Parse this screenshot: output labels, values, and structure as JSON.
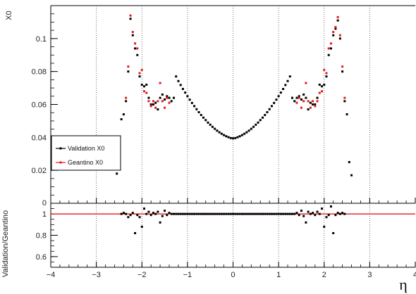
{
  "chart_data": [
    {
      "type": "scatter",
      "panel": "main",
      "ylabel": "X0",
      "xlim": [
        -4,
        4
      ],
      "ylim": [
        0,
        0.12
      ],
      "x_ticks": [
        -4,
        -3,
        -2,
        -1,
        0,
        1,
        2,
        3,
        4
      ],
      "y_ticks": [
        0.02,
        0.04,
        0.06,
        0.08,
        0.1
      ],
      "y_tick_labels": [
        "0.02",
        "0.04",
        "0.06",
        "0.08",
        "0.1"
      ],
      "grid": "vertical-dotted",
      "legend_position": "left",
      "series": [
        {
          "name": "Validation X0",
          "color": "#000000",
          "points": [
            [
              -2.55,
              0.018
            ],
            [
              -2.45,
              0.051
            ],
            [
              -2.4,
              0.054
            ],
            [
              -2.35,
              0.062
            ],
            [
              -2.3,
              0.08
            ],
            [
              -2.25,
              0.112
            ],
            [
              -2.2,
              0.102
            ],
            [
              -2.15,
              0.094
            ],
            [
              -2.1,
              0.09
            ],
            [
              -2.05,
              0.077
            ],
            [
              -2.0,
              0.072
            ],
            [
              -1.95,
              0.071
            ],
            [
              -1.9,
              0.072
            ],
            [
              -1.85,
              0.064
            ],
            [
              -1.8,
              0.06
            ],
            [
              -1.75,
              0.06
            ],
            [
              -1.7,
              0.061
            ],
            [
              -1.65,
              0.057
            ],
            [
              -1.6,
              0.064
            ],
            [
              -1.55,
              0.066
            ],
            [
              -1.5,
              0.063
            ],
            [
              -1.45,
              0.065
            ],
            [
              -1.4,
              0.064
            ],
            [
              -1.35,
              0.062
            ],
            [
              -1.3,
              0.064
            ],
            [
              -1.25,
              0.077
            ],
            [
              -1.2,
              0.0742
            ],
            [
              -1.15,
              0.0718
            ],
            [
              -1.1,
              0.0694
            ],
            [
              -1.05,
              0.0672
            ],
            [
              -1.0,
              0.065
            ],
            [
              -0.95,
              0.0629
            ],
            [
              -0.9,
              0.0609
            ],
            [
              -0.85,
              0.059
            ],
            [
              -0.8,
              0.0571
            ],
            [
              -0.75,
              0.0553
            ],
            [
              -0.7,
              0.0536
            ],
            [
              -0.65,
              0.052
            ],
            [
              -0.6,
              0.0505
            ],
            [
              -0.55,
              0.049
            ],
            [
              -0.5,
              0.0477
            ],
            [
              -0.45,
              0.0464
            ],
            [
              -0.4,
              0.0452
            ],
            [
              -0.35,
              0.0441
            ],
            [
              -0.3,
              0.0431
            ],
            [
              -0.25,
              0.0422
            ],
            [
              -0.2,
              0.0414
            ],
            [
              -0.15,
              0.0407
            ],
            [
              -0.1,
              0.0401
            ],
            [
              -0.05,
              0.0396
            ],
            [
              0.0,
              0.0394
            ],
            [
              0.05,
              0.0396
            ],
            [
              0.1,
              0.0401
            ],
            [
              0.15,
              0.0407
            ],
            [
              0.2,
              0.0414
            ],
            [
              0.25,
              0.0422
            ],
            [
              0.3,
              0.0431
            ],
            [
              0.35,
              0.0441
            ],
            [
              0.4,
              0.0452
            ],
            [
              0.45,
              0.0464
            ],
            [
              0.5,
              0.0477
            ],
            [
              0.55,
              0.049
            ],
            [
              0.6,
              0.0505
            ],
            [
              0.65,
              0.052
            ],
            [
              0.7,
              0.0536
            ],
            [
              0.75,
              0.0553
            ],
            [
              0.8,
              0.0571
            ],
            [
              0.85,
              0.059
            ],
            [
              0.9,
              0.0609
            ],
            [
              0.95,
              0.0629
            ],
            [
              1.0,
              0.065
            ],
            [
              1.05,
              0.0672
            ],
            [
              1.1,
              0.0694
            ],
            [
              1.15,
              0.0718
            ],
            [
              1.2,
              0.0742
            ],
            [
              1.25,
              0.077
            ],
            [
              1.3,
              0.064
            ],
            [
              1.35,
              0.062
            ],
            [
              1.4,
              0.064
            ],
            [
              1.45,
              0.065
            ],
            [
              1.5,
              0.063
            ],
            [
              1.55,
              0.066
            ],
            [
              1.6,
              0.064
            ],
            [
              1.65,
              0.057
            ],
            [
              1.7,
              0.061
            ],
            [
              1.75,
              0.06
            ],
            [
              1.8,
              0.06
            ],
            [
              1.85,
              0.064
            ],
            [
              1.9,
              0.072
            ],
            [
              1.95,
              0.071
            ],
            [
              2.0,
              0.072
            ],
            [
              2.05,
              0.077
            ],
            [
              2.1,
              0.09
            ],
            [
              2.15,
              0.094
            ],
            [
              2.2,
              0.102
            ],
            [
              2.25,
              0.106
            ],
            [
              2.3,
              0.111
            ],
            [
              2.35,
              0.1
            ],
            [
              2.4,
              0.08
            ],
            [
              2.45,
              0.062
            ],
            [
              2.5,
              0.054
            ],
            [
              2.55,
              0.025
            ],
            [
              2.6,
              0.017
            ]
          ]
        },
        {
          "name": "Geantino X0",
          "color": "#e41a1c",
          "points": [
            [
              -2.35,
              0.064
            ],
            [
              -2.3,
              0.083
            ],
            [
              -2.25,
              0.114
            ],
            [
              -2.2,
              0.104
            ],
            [
              -2.15,
              0.097
            ],
            [
              -2.1,
              0.094
            ],
            [
              -2.05,
              0.079
            ],
            [
              -2.0,
              0.081
            ],
            [
              -1.95,
              0.068
            ],
            [
              -1.9,
              0.067
            ],
            [
              -1.85,
              0.062
            ],
            [
              -1.8,
              0.059
            ],
            [
              -1.75,
              0.062
            ],
            [
              -1.7,
              0.058
            ],
            [
              -1.65,
              0.062
            ],
            [
              -1.6,
              0.073
            ],
            [
              -1.55,
              0.062
            ],
            [
              -1.5,
              0.058
            ],
            [
              -1.45,
              0.064
            ],
            [
              -1.4,
              0.061
            ],
            [
              1.4,
              0.061
            ],
            [
              1.45,
              0.064
            ],
            [
              1.5,
              0.058
            ],
            [
              1.55,
              0.062
            ],
            [
              1.6,
              0.073
            ],
            [
              1.65,
              0.062
            ],
            [
              1.7,
              0.058
            ],
            [
              1.75,
              0.062
            ],
            [
              1.8,
              0.059
            ],
            [
              1.85,
              0.062
            ],
            [
              1.9,
              0.067
            ],
            [
              1.95,
              0.068
            ],
            [
              2.0,
              0.081
            ],
            [
              2.05,
              0.079
            ],
            [
              2.1,
              0.094
            ],
            [
              2.15,
              0.097
            ],
            [
              2.2,
              0.104
            ],
            [
              2.25,
              0.107
            ],
            [
              2.3,
              0.113
            ],
            [
              2.35,
              0.102
            ],
            [
              2.4,
              0.083
            ],
            [
              2.45,
              0.064
            ]
          ]
        }
      ]
    },
    {
      "type": "scatter",
      "panel": "ratio",
      "ylabel": "Validation/Geantino",
      "xlabel": "η",
      "xlim": [
        -4,
        4
      ],
      "ylim": [
        0.5,
        1.1
      ],
      "x_ticks": [
        -4,
        -3,
        -2,
        -1,
        0,
        1,
        2,
        3,
        4
      ],
      "x_tick_labels": [
        "−4",
        "−3",
        "−2",
        "−1",
        "0",
        "1",
        "2",
        "3",
        "4"
      ],
      "y_ticks": [
        0.6,
        0.8,
        1.0
      ],
      "y_tick_labels": [
        "0.6",
        "0.8",
        "1"
      ],
      "reference_line": {
        "y": 1.0,
        "color": "#e41a1c"
      },
      "series": [
        {
          "name": "",
          "color": "#000000",
          "points": [
            [
              -2.45,
              1.0
            ],
            [
              -2.4,
              1.01
            ],
            [
              -2.35,
              1.0
            ],
            [
              -2.3,
              0.97
            ],
            [
              -2.25,
              0.99
            ],
            [
              -2.2,
              1.01
            ],
            [
              -2.15,
              0.82
            ],
            [
              -2.1,
              0.99
            ],
            [
              -2.05,
              0.97
            ],
            [
              -2.0,
              0.88
            ],
            [
              -1.95,
              1.05
            ],
            [
              -1.9,
              1.0
            ],
            [
              -1.85,
              1.02
            ],
            [
              -1.8,
              0.99
            ],
            [
              -1.75,
              1.01
            ],
            [
              -1.7,
              1.0
            ],
            [
              -1.65,
              1.02
            ],
            [
              -1.6,
              0.92
            ],
            [
              -1.55,
              0.98
            ],
            [
              -1.5,
              1.03
            ],
            [
              -1.45,
              0.99
            ],
            [
              -1.4,
              1.01
            ],
            [
              -1.35,
              1.0
            ],
            [
              -1.3,
              1.0
            ],
            [
              -1.25,
              1.0
            ],
            [
              -1.2,
              1.0
            ],
            [
              -1.15,
              1.0
            ],
            [
              -1.1,
              1.0
            ],
            [
              -1.05,
              1.0
            ],
            [
              -1.0,
              1.0
            ],
            [
              -0.95,
              1.0
            ],
            [
              -0.9,
              1.0
            ],
            [
              -0.85,
              1.0
            ],
            [
              -0.8,
              1.0
            ],
            [
              -0.75,
              1.0
            ],
            [
              -0.7,
              1.0
            ],
            [
              -0.65,
              1.0
            ],
            [
              -0.6,
              1.0
            ],
            [
              -0.55,
              1.0
            ],
            [
              -0.5,
              1.0
            ],
            [
              -0.45,
              1.0
            ],
            [
              -0.4,
              1.0
            ],
            [
              -0.35,
              1.0
            ],
            [
              -0.3,
              1.0
            ],
            [
              -0.25,
              1.0
            ],
            [
              -0.2,
              1.0
            ],
            [
              -0.15,
              1.0
            ],
            [
              -0.1,
              1.0
            ],
            [
              -0.05,
              1.0
            ],
            [
              0.0,
              1.0
            ],
            [
              0.05,
              1.0
            ],
            [
              0.1,
              1.0
            ],
            [
              0.15,
              1.0
            ],
            [
              0.2,
              1.0
            ],
            [
              0.25,
              1.0
            ],
            [
              0.3,
              1.0
            ],
            [
              0.35,
              1.0
            ],
            [
              0.4,
              1.0
            ],
            [
              0.45,
              1.0
            ],
            [
              0.5,
              1.0
            ],
            [
              0.55,
              1.0
            ],
            [
              0.6,
              1.0
            ],
            [
              0.65,
              1.0
            ],
            [
              0.7,
              1.0
            ],
            [
              0.75,
              1.0
            ],
            [
              0.8,
              1.0
            ],
            [
              0.85,
              1.0
            ],
            [
              0.9,
              1.0
            ],
            [
              0.95,
              1.0
            ],
            [
              1.0,
              1.0
            ],
            [
              1.05,
              1.0
            ],
            [
              1.1,
              1.0
            ],
            [
              1.15,
              1.0
            ],
            [
              1.2,
              1.0
            ],
            [
              1.25,
              1.0
            ],
            [
              1.3,
              1.0
            ],
            [
              1.35,
              1.0
            ],
            [
              1.4,
              1.01
            ],
            [
              1.45,
              0.99
            ],
            [
              1.5,
              1.03
            ],
            [
              1.55,
              0.98
            ],
            [
              1.6,
              0.92
            ],
            [
              1.65,
              1.02
            ],
            [
              1.7,
              1.0
            ],
            [
              1.75,
              1.01
            ],
            [
              1.8,
              0.99
            ],
            [
              1.85,
              1.02
            ],
            [
              1.9,
              1.0
            ],
            [
              1.95,
              1.05
            ],
            [
              2.0,
              0.88
            ],
            [
              2.05,
              0.97
            ],
            [
              2.1,
              0.99
            ],
            [
              2.15,
              1.07
            ],
            [
              2.2,
              0.82
            ],
            [
              2.25,
              0.99
            ],
            [
              2.3,
              1.01
            ],
            [
              2.35,
              1.0
            ],
            [
              2.4,
              1.01
            ],
            [
              2.45,
              1.0
            ]
          ]
        }
      ]
    }
  ]
}
